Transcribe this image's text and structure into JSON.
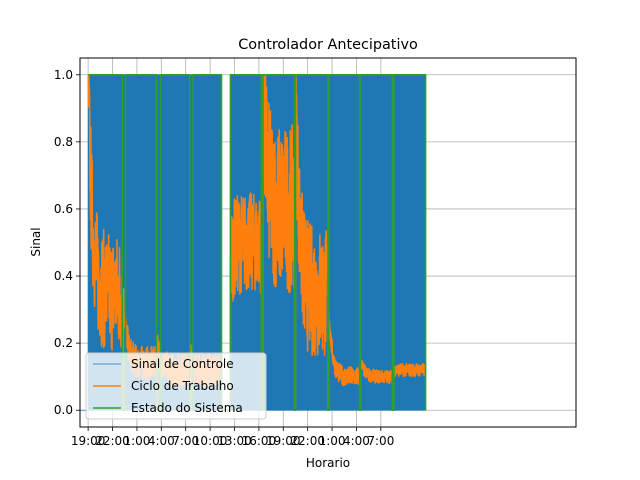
{
  "chart_data": {
    "type": "line",
    "title": "Controlador Antecipativo",
    "xlabel": "Horario",
    "ylabel": "Sinal",
    "xlim": [
      -1.0,
      60.0
    ],
    "ylim": [
      -0.05,
      1.05
    ],
    "grid": true,
    "legend_position": "lower-left",
    "x_unit": "hours since first 19:00",
    "x_ticks": [
      {
        "x": 0,
        "label": "19:00"
      },
      {
        "x": 3,
        "label": "22:00"
      },
      {
        "x": 6,
        "label": "1:00"
      },
      {
        "x": 9,
        "label": "4:00"
      },
      {
        "x": 12,
        "label": "7:00"
      },
      {
        "x": 15,
        "label": "10:00"
      },
      {
        "x": 18,
        "label": "13:00"
      },
      {
        "x": 21,
        "label": "16:00"
      },
      {
        "x": 24,
        "label": "19:00"
      },
      {
        "x": 27,
        "label": "22:00"
      },
      {
        "x": 30,
        "label": "1:00"
      },
      {
        "x": 33,
        "label": "4:00"
      },
      {
        "x": 36,
        "label": "7:00"
      }
    ],
    "y_ticks": [
      {
        "y": 0.0,
        "label": "0.0"
      },
      {
        "y": 0.2,
        "label": "0.2"
      },
      {
        "y": 0.4,
        "label": "0.4"
      },
      {
        "y": 0.6,
        "label": "0.6"
      },
      {
        "y": 0.8,
        "label": "0.8"
      },
      {
        "y": 1.0,
        "label": "1.0"
      }
    ],
    "series": [
      {
        "name": "Sinal de Controle",
        "color": "#1f77b4",
        "style": "dense on/off switching between 0 and 1 inside each active period",
        "active_periods": [
          [
            0.0,
            4.2
          ],
          [
            4.3,
            8.4
          ],
          [
            8.5,
            12.5
          ],
          [
            12.6,
            16.4
          ],
          [
            17.5,
            21.3
          ],
          [
            21.5,
            25.4
          ],
          [
            25.5,
            29.5
          ],
          [
            29.6,
            33.4
          ],
          [
            33.5,
            37.4
          ],
          [
            37.6,
            41.5
          ]
        ]
      },
      {
        "name": "Ciclo de Trabalho",
        "color": "#ff7f0e",
        "style": "noisy duty cycle, starts near 1.0 and decays inside each active period",
        "periods": [
          {
            "x": [
              0.0,
              4.2
            ],
            "start": 1.0,
            "level": 0.35,
            "noise": 0.18
          },
          {
            "x": [
              4.3,
              8.4
            ],
            "start": 0.35,
            "level": 0.14,
            "noise": 0.05
          },
          {
            "x": [
              8.5,
              12.5
            ],
            "start": 0.2,
            "level": 0.12,
            "noise": 0.05
          },
          {
            "x": [
              12.6,
              16.4
            ],
            "start": 0.15,
            "level": 0.12,
            "noise": 0.05
          },
          {
            "x": [
              17.5,
              21.3
            ],
            "start": 0.45,
            "level": 0.5,
            "noise": 0.15
          },
          {
            "x": [
              21.5,
              25.4
            ],
            "start": 1.0,
            "level": 0.6,
            "noise": 0.25
          },
          {
            "x": [
              25.5,
              29.5
            ],
            "start": 1.0,
            "level": 0.35,
            "noise": 0.2
          },
          {
            "x": [
              29.6,
              33.4
            ],
            "start": 0.3,
            "level": 0.1,
            "noise": 0.03
          },
          {
            "x": [
              33.5,
              37.4
            ],
            "start": 0.15,
            "level": 0.1,
            "noise": 0.02
          },
          {
            "x": [
              37.6,
              41.5
            ],
            "start": 0.12,
            "level": 0.12,
            "noise": 0.02
          }
        ]
      },
      {
        "name": "Estado do Sistema",
        "color": "#2ca02c",
        "style": "step",
        "on_periods": [
          [
            0.0,
            4.2
          ],
          [
            4.6,
            8.4
          ],
          [
            8.9,
            12.5
          ],
          [
            12.9,
            16.4
          ],
          [
            17.5,
            21.3
          ],
          [
            21.5,
            25.4
          ],
          [
            25.5,
            29.5
          ],
          [
            29.6,
            33.4
          ],
          [
            33.5,
            37.4
          ],
          [
            37.6,
            41.5
          ]
        ]
      }
    ]
  }
}
